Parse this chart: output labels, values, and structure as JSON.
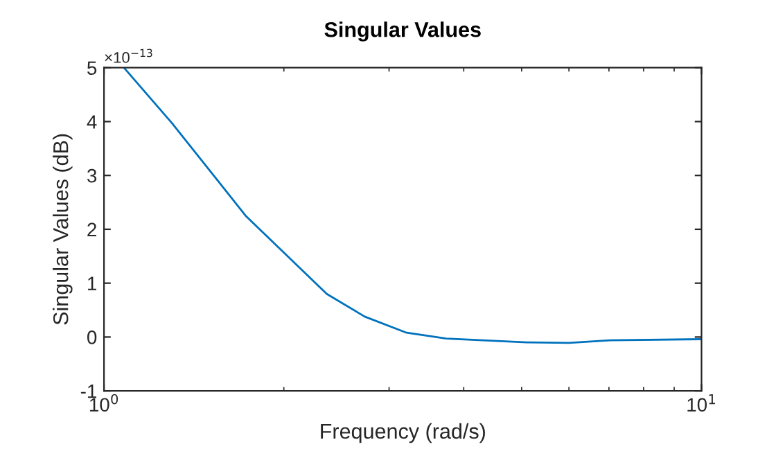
{
  "chart_data": {
    "type": "line",
    "title": "Singular Values",
    "xlabel": "Frequency (rad/s)",
    "ylabel": "Singular Values (dB)",
    "log": "x",
    "x": [
      1.08,
      1.3,
      1.73,
      2.36,
      2.73,
      3.21,
      3.74,
      5.1,
      6,
      7.03,
      10
    ],
    "series": [
      {
        "color": "#0072bd",
        "values": [
          5,
          3.97,
          2.24,
          0.8,
          0.38,
          0.08,
          -0.03,
          -0.1,
          -0.11,
          -0.06,
          -0.04
        ]
      }
    ],
    "xlim": [
      1,
      10
    ],
    "xticks": [
      {
        "value": 1,
        "label": "10$^{0}$"
      },
      {
        "value": 10,
        "label": "10$^{1}$"
      }
    ],
    "ylim": [
      -1,
      5
    ],
    "yticks": [
      -1,
      0,
      1,
      2,
      3,
      4,
      5
    ],
    "annotations": [
      "×10$^{−13}$"
    ],
    "grid": false,
    "legend": false
  }
}
